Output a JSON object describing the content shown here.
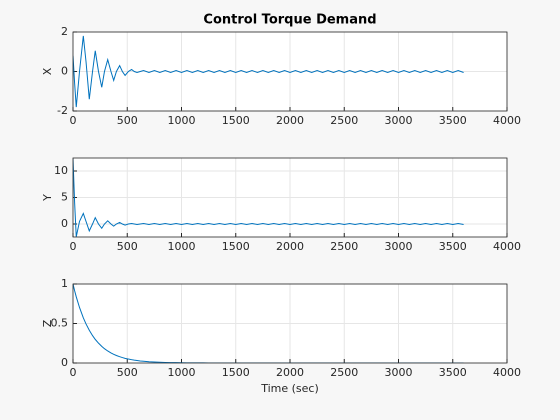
{
  "chart_data": [
    {
      "type": "line",
      "title": "Control Torque Demand",
      "ylabel": "X",
      "color": "#0072bd",
      "grid": true,
      "xlim": [
        0,
        4000
      ],
      "xticks": [
        0,
        500,
        1000,
        1500,
        2000,
        2500,
        3000,
        3500,
        4000
      ],
      "ylim": [
        -2,
        2
      ],
      "yticks": [
        -2,
        0,
        2
      ],
      "x": [
        0,
        15,
        30,
        60,
        95,
        120,
        150,
        180,
        205,
        235,
        265,
        290,
        320,
        350,
        375,
        400,
        430,
        455,
        480,
        510,
        540,
        565,
        590,
        620,
        650,
        700,
        750,
        800,
        850,
        900,
        950,
        1000,
        1050,
        1100,
        1150,
        1200,
        1250,
        1300,
        1350,
        1400,
        1450,
        1500,
        1550,
        1600,
        1650,
        1700,
        1750,
        1800,
        1850,
        1900,
        1950,
        2000,
        2050,
        2100,
        2150,
        2200,
        2250,
        2300,
        2350,
        2400,
        2450,
        2500,
        2550,
        2600,
        2650,
        2700,
        2750,
        2800,
        2850,
        2900,
        2950,
        3000,
        3050,
        3100,
        3150,
        3200,
        3250,
        3300,
        3350,
        3400,
        3450,
        3500,
        3550,
        3600
      ],
      "values": [
        0.8,
        -0.6,
        -1.8,
        0,
        1.8,
        0.5,
        -1.4,
        0,
        1.05,
        0,
        -0.8,
        0,
        0.6,
        0,
        -0.45,
        0,
        0.3,
        0,
        -0.2,
        0,
        0.1,
        0,
        -0.05,
        0,
        0.05,
        -0.05,
        0.05,
        -0.05,
        0.05,
        -0.05,
        0.05,
        -0.05,
        0.05,
        -0.05,
        0.05,
        -0.05,
        0.05,
        -0.05,
        0.05,
        -0.05,
        0.05,
        -0.05,
        0.05,
        -0.05,
        0.05,
        -0.05,
        0.05,
        -0.05,
        0.05,
        -0.05,
        0.05,
        -0.05,
        0.05,
        -0.05,
        0.05,
        -0.05,
        0.05,
        -0.05,
        0.05,
        -0.05,
        0.05,
        -0.05,
        0.05,
        -0.05,
        0.05,
        -0.05,
        0.05,
        -0.05,
        0.05,
        -0.05,
        0.05,
        -0.05,
        0.05,
        -0.05,
        0.05,
        -0.05,
        0.05,
        -0.05,
        0.05,
        -0.05,
        0.05,
        -0.05,
        0.05,
        -0.05
      ]
    },
    {
      "type": "line",
      "ylabel": "Y",
      "color": "#0072bd",
      "grid": true,
      "xlim": [
        0,
        4000
      ],
      "xticks": [
        0,
        500,
        1000,
        1500,
        2000,
        2500,
        3000,
        3500,
        4000
      ],
      "ylim": [
        -2.45,
        12.45
      ],
      "yticks": [
        0,
        5,
        10
      ],
      "x": [
        0,
        15,
        30,
        60,
        95,
        120,
        150,
        180,
        205,
        235,
        265,
        290,
        320,
        350,
        375,
        400,
        430,
        455,
        480,
        510,
        540,
        565,
        590,
        620,
        650,
        700,
        750,
        800,
        850,
        900,
        950,
        1000,
        1050,
        1100,
        1150,
        1200,
        1250,
        1300,
        1350,
        1400,
        1450,
        1500,
        1550,
        1600,
        1650,
        1700,
        1750,
        1800,
        1850,
        1900,
        1950,
        2000,
        2050,
        2100,
        2150,
        2200,
        2250,
        2300,
        2350,
        2400,
        2450,
        2500,
        2550,
        2600,
        2650,
        2700,
        2750,
        2800,
        2850,
        2900,
        2950,
        3000,
        3050,
        3100,
        3150,
        3200,
        3250,
        3300,
        3350,
        3400,
        3450,
        3500,
        3550,
        3600
      ],
      "values": [
        12.3,
        4,
        -2.4,
        0.5,
        2,
        0.5,
        -1.3,
        0,
        1.2,
        0,
        -0.8,
        0,
        0.6,
        0,
        -0.4,
        0,
        0.3,
        0,
        -0.2,
        0,
        0.1,
        0,
        -0.1,
        0,
        0.1,
        -0.1,
        0.1,
        -0.1,
        0.1,
        -0.1,
        0.1,
        -0.1,
        0.1,
        -0.1,
        0.1,
        -0.1,
        0.1,
        -0.1,
        0.1,
        -0.1,
        0.1,
        -0.1,
        0.1,
        -0.1,
        0.1,
        -0.1,
        0.1,
        -0.1,
        0.1,
        -0.1,
        0.1,
        -0.1,
        0.1,
        -0.1,
        0.1,
        -0.1,
        0.1,
        -0.1,
        0.1,
        -0.1,
        0.1,
        -0.1,
        0.1,
        -0.1,
        0.1,
        -0.1,
        0.1,
        -0.1,
        0.1,
        -0.1,
        0.1,
        -0.1,
        0.1,
        -0.1,
        0.1,
        -0.1,
        0.1,
        -0.1,
        0.1,
        -0.1,
        0.1,
        -0.1,
        0.1,
        -0.1
      ]
    },
    {
      "type": "line",
      "ylabel": "Z",
      "xlabel": "Time (sec)",
      "color": "#0072bd",
      "grid": true,
      "xlim": [
        0,
        4000
      ],
      "xticks": [
        0,
        500,
        1000,
        1500,
        2000,
        2500,
        3000,
        3500,
        4000
      ],
      "ylim": [
        0,
        1
      ],
      "yticks": [
        0,
        0.5,
        1
      ],
      "x": [
        0,
        15,
        30,
        60,
        95,
        120,
        150,
        180,
        205,
        235,
        265,
        290,
        320,
        350,
        375,
        400,
        430,
        455,
        480,
        510,
        540,
        565,
        590,
        620,
        650,
        700,
        750,
        800,
        850,
        900,
        950,
        1000,
        1050,
        1100,
        1150,
        1200,
        1250,
        1300,
        1350,
        1400,
        1450,
        1500,
        1550,
        1600,
        1650,
        1700,
        1750,
        1800,
        1850,
        1900,
        1950,
        2000,
        2050,
        2100,
        2150,
        2200,
        2250,
        2300,
        2350,
        2400,
        2450,
        2500,
        2550,
        2600,
        2650,
        2700,
        2750,
        2800,
        2850,
        2900,
        2950,
        3000,
        3050,
        3100,
        3150,
        3200,
        3250,
        3300,
        3350,
        3400,
        3450,
        3500,
        3550,
        3600
      ],
      "values": [
        1,
        0.915,
        0.838,
        0.703,
        0.572,
        0.494,
        0.414,
        0.347,
        0.299,
        0.251,
        0.211,
        0.181,
        0.152,
        0.128,
        0.11,
        0.095,
        0.08,
        0.069,
        0.059,
        0.05,
        0.042,
        0.036,
        0.031,
        0.026,
        0.022,
        0.016,
        0.012,
        0.009,
        0.007,
        0.005,
        0.004,
        0.003,
        0.002,
        0.002,
        0.001,
        0.001,
        0,
        0,
        0,
        0,
        0,
        0,
        0,
        0,
        0,
        0,
        0,
        0,
        0,
        0,
        0,
        0,
        0,
        0,
        0,
        0,
        0,
        0,
        0,
        0,
        0,
        0,
        0,
        0,
        0,
        0,
        0,
        0,
        0,
        0,
        0,
        0,
        0,
        0,
        0,
        0,
        0,
        0,
        0,
        0,
        0,
        0,
        0,
        0
      ]
    }
  ]
}
